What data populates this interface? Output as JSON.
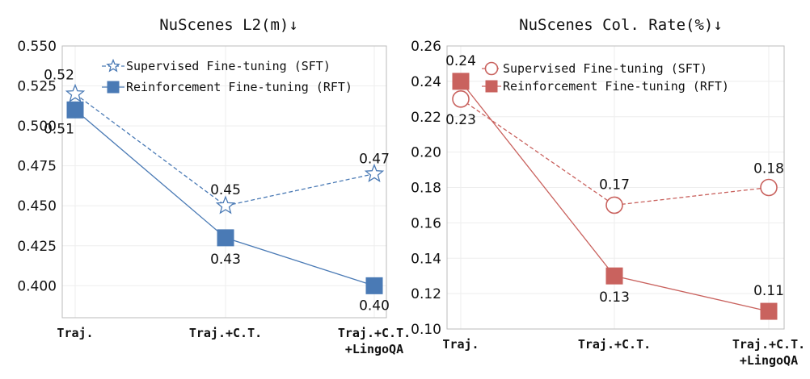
{
  "chart_data": [
    {
      "type": "line",
      "title": "NuScenes L2(m)↓",
      "categories": [
        "Traj.",
        "Traj.+C.T.",
        "Traj.+C.T.\n+LingoQA"
      ],
      "ylim": [
        0.38,
        0.55
      ],
      "yticks": [
        "0.400",
        "0.425",
        "0.450",
        "0.475",
        "0.500",
        "0.525",
        "0.550"
      ],
      "legend_position": "top-right",
      "grid": true,
      "color": "#4a7ab5",
      "series": [
        {
          "name": "Supervised Fine-tuning (SFT)",
          "marker": "star",
          "style": "dashed",
          "values": [
            0.52,
            0.45,
            0.47
          ],
          "labels": [
            "0.52",
            "0.45",
            "0.47"
          ]
        },
        {
          "name": "Reinforcement Fine-tuning (RFT)",
          "marker": "square",
          "style": "solid",
          "values": [
            0.51,
            0.43,
            0.4
          ],
          "labels": [
            "0.51",
            "0.43",
            "0.40"
          ]
        }
      ]
    },
    {
      "type": "line",
      "title": "NuScenes Col. Rate(%)↓",
      "categories": [
        "Traj.",
        "Traj.+C.T.",
        "Traj.+C.T.\n+LingoQA"
      ],
      "ylim": [
        0.1,
        0.26
      ],
      "yticks": [
        "0.10",
        "0.12",
        "0.14",
        "0.16",
        "0.18",
        "0.20",
        "0.22",
        "0.24",
        "0.26"
      ],
      "legend_position": "top-right",
      "grid": true,
      "color": "#c9625e",
      "series": [
        {
          "name": "Supervised Fine-tuning (SFT)",
          "marker": "circle",
          "style": "dashed",
          "values": [
            0.23,
            0.17,
            0.18
          ],
          "labels": [
            "0.23",
            "0.17",
            "0.18"
          ]
        },
        {
          "name": "Reinforcement Fine-tuning (RFT)",
          "marker": "square",
          "style": "solid",
          "values": [
            0.24,
            0.13,
            0.11
          ],
          "labels": [
            "0.24",
            "0.13",
            "0.11"
          ]
        }
      ]
    }
  ]
}
